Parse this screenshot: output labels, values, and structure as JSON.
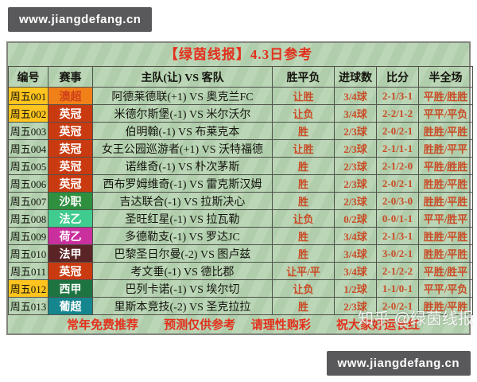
{
  "page": {
    "top_badge": "www.jiangdefang.cn",
    "bottom_badge": "www.jiangdefang.cn",
    "watermark": "知乎 @绿茵线报"
  },
  "panel": {
    "title": "【绿茵线报】4.3日参考",
    "footer_notes": [
      "常年免费推荐",
      "预测仅供参考",
      "请理性购彩",
      "祝大家好运长红"
    ]
  },
  "colors": {
    "panel_bg": "#b6d3b1",
    "accent_red": "#e3301c",
    "value_red": "#c94b26",
    "id_highlight": "#ffc41e",
    "badge_bg": "#59595b",
    "grid_line": "#50514b"
  },
  "table": {
    "headers": [
      "编号",
      "赛事",
      "主队(让) VS 客队",
      "胜平负",
      "进球数",
      "比分",
      "半全场"
    ],
    "rows": [
      {
        "id": "周五001",
        "id_highlighted": true,
        "league": "澳超",
        "league_bg": "#f08018",
        "league_fg": "#d0401a",
        "match": "阿德莱德联(+1) VS 奥克兰FC",
        "result": "让胜",
        "goals": "3/4球",
        "score": "2-1/3-1",
        "half_full": "平胜/胜胜"
      },
      {
        "id": "周五002",
        "id_highlighted": true,
        "league": "英冠",
        "league_bg": "#c93a10",
        "league_fg": "#ffffff",
        "match": "米德尔斯堡(-1) VS 米尔沃尔",
        "result": "让负",
        "goals": "3/4球",
        "score": "2-2/1-2",
        "half_full": "平平/平负"
      },
      {
        "id": "周五003",
        "id_highlighted": false,
        "league": "英冠",
        "league_bg": "#c93a10",
        "league_fg": "#ffffff",
        "match": "伯明翰(-1) VS 布莱克本",
        "result": "胜",
        "goals": "2/3球",
        "score": "2-0/2-1",
        "half_full": "胜胜/平胜"
      },
      {
        "id": "周五004",
        "id_highlighted": false,
        "league": "英冠",
        "league_bg": "#c93a10",
        "league_fg": "#ffffff",
        "match": "女王公园巡游者(+1) VS 沃特福德",
        "result": "让胜",
        "goals": "2/3球",
        "score": "2-1/1-1",
        "half_full": "胜胜/平平"
      },
      {
        "id": "周五005",
        "id_highlighted": false,
        "league": "英冠",
        "league_bg": "#c93a10",
        "league_fg": "#ffffff",
        "match": "诺维奇(-1) VS 朴次茅斯",
        "result": "胜",
        "goals": "2/3球",
        "score": "2-1/2-0",
        "half_full": "平胜/胜胜"
      },
      {
        "id": "周五006",
        "id_highlighted": false,
        "league": "英冠",
        "league_bg": "#c93a10",
        "league_fg": "#ffffff",
        "match": "西布罗姆维奇(-1) VS 雷克斯汉姆",
        "result": "胜",
        "goals": "2/3球",
        "score": "2-0/2-1",
        "half_full": "胜胜/平胜"
      },
      {
        "id": "周五007",
        "id_highlighted": false,
        "league": "沙职",
        "league_bg": "#2e8f3e",
        "league_fg": "#ffffff",
        "match": "吉达联合(-1) VS 拉斯决心",
        "result": "胜",
        "goals": "2/3球",
        "score": "2-0/3-0",
        "half_full": "胜胜/平胜"
      },
      {
        "id": "周五008",
        "id_highlighted": false,
        "league": "法乙",
        "league_bg": "#40cb8f",
        "league_fg": "#ffffff",
        "match": "圣旺红星(-1) VS 拉瓦勒",
        "result": "让负",
        "goals": "0/2球",
        "score": "0-0/1-1",
        "half_full": "平平/胜平"
      },
      {
        "id": "周五009",
        "id_highlighted": false,
        "league": "荷乙",
        "league_bg": "#c92f9d",
        "league_fg": "#ffffff",
        "match": "多德勒支(-1) VS 罗达JC",
        "result": "胜",
        "goals": "3/4球",
        "score": "2-1/3-1",
        "half_full": "胜胜/平胜"
      },
      {
        "id": "周五010",
        "id_highlighted": false,
        "league": "法甲",
        "league_bg": "#5a2427",
        "league_fg": "#ffffff",
        "match": "巴黎圣日尔曼(-2) VS 图卢兹",
        "result": "胜",
        "goals": "3/4球",
        "score": "3-0/2-1",
        "half_full": "胜胜/平胜"
      },
      {
        "id": "周五011",
        "id_highlighted": false,
        "league": "英冠",
        "league_bg": "#c93a10",
        "league_fg": "#ffffff",
        "match": "考文垂(-1) VS 德比郡",
        "result": "让平/平",
        "goals": "3/4球",
        "score": "2-1/2-2",
        "half_full": "平胜/胜平"
      },
      {
        "id": "周五012",
        "id_highlighted": true,
        "league": "西甲",
        "league_bg": "#1d7440",
        "league_fg": "#ffffff",
        "match": "巴列卡诺(-1) VS 埃尔切",
        "result": "让负",
        "goals": "1/2球",
        "score": "1-1/0-1",
        "half_full": "平平/平负"
      },
      {
        "id": "周五013",
        "id_highlighted": false,
        "league": "葡超",
        "league_bg": "#16868e",
        "league_fg": "#ffffff",
        "match": "里斯本竞技(-2) VS 圣克拉拉",
        "result": "胜",
        "goals": "2/3球",
        "score": "2-0/2-1",
        "half_full": "胜胜/平胜"
      }
    ]
  }
}
